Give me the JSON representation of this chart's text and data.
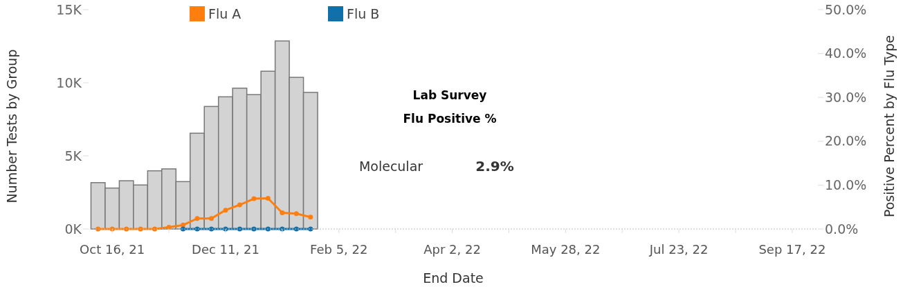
{
  "chart_data": {
    "type": "bar",
    "xlabel": "End Date",
    "ylabel": "Number Tests by Group",
    "y2label": "Positive Percent by Flu Type",
    "x": [
      "2021-10-09",
      "2021-10-16",
      "2021-10-23",
      "2021-10-30",
      "2021-11-06",
      "2021-11-13",
      "2021-11-20",
      "2021-11-27",
      "2021-12-04",
      "2021-12-11",
      "2021-12-18",
      "2021-12-25",
      "2022-01-01",
      "2022-01-08",
      "2022-01-15",
      "2022-01-22"
    ],
    "series": [
      {
        "color": "#d3d3d3",
        "values": [
          3170,
          2800,
          3300,
          3010,
          3980,
          4110,
          3240,
          6550,
          8380,
          9040,
          9630,
          9190,
          10790,
          12860,
          10370,
          9340
        ]
      },
      {
        "type": "line",
        "name": "Flu A",
        "color": "#ff7f0e",
        "axis": "y2",
        "values": [
          0,
          0,
          0,
          0,
          0,
          0.4,
          0.9,
          2.4,
          2.4,
          4.3,
          5.5,
          6.9,
          7.0,
          3.7,
          3.5,
          2.7
        ]
      },
      {
        "type": "line",
        "name": "Flu B",
        "color": "#1170aa",
        "axis": "y2",
        "values": [
          null,
          null,
          null,
          null,
          null,
          null,
          0,
          0,
          0,
          0,
          0,
          0,
          0,
          0,
          0,
          0
        ]
      }
    ],
    "xlim": [
      "2021-10-05",
      "2022-09-29"
    ],
    "xticks": [
      {
        "value": "2021-10-16",
        "label": "Oct 16, 21"
      },
      {
        "value": "2021-11-13",
        "label": null
      },
      {
        "value": "2021-12-11",
        "label": "Dec 11, 21"
      },
      {
        "value": "2022-01-08",
        "label": null
      },
      {
        "value": "2022-02-05",
        "label": "Feb 5, 22"
      },
      {
        "value": "2022-03-05",
        "label": null
      },
      {
        "value": "2022-04-02",
        "label": "Apr 2, 22"
      },
      {
        "value": "2022-04-30",
        "label": null
      },
      {
        "value": "2022-05-28",
        "label": "May 28, 22"
      },
      {
        "value": "2022-06-25",
        "label": null
      },
      {
        "value": "2022-07-23",
        "label": "Jul 23, 22"
      },
      {
        "value": "2022-08-20",
        "label": null
      },
      {
        "value": "2022-09-17",
        "label": "Sep 17, 22"
      }
    ],
    "ylim": [
      0,
      15000
    ],
    "yticks": [
      {
        "value": 0,
        "label": "0K"
      },
      {
        "value": 5000,
        "label": "5K"
      },
      {
        "value": 10000,
        "label": "10K"
      },
      {
        "value": 15000,
        "label": "15K"
      }
    ],
    "y2lim": [
      0,
      50
    ],
    "y2ticks": [
      {
        "value": 0,
        "label": "0.0%"
      },
      {
        "value": 10,
        "label": "10.0%"
      },
      {
        "value": 20,
        "label": "20.0%"
      },
      {
        "value": 30,
        "label": "30.0%"
      },
      {
        "value": 40,
        "label": "40.0%"
      },
      {
        "value": 50,
        "label": "50.0%"
      }
    ],
    "annotations": [
      "Lab Survey",
      "Flu Positive %",
      "Molecular",
      "2.9%"
    ],
    "legend": "top",
    "marker": "circle",
    "line_style": "solid",
    "grid": false
  }
}
